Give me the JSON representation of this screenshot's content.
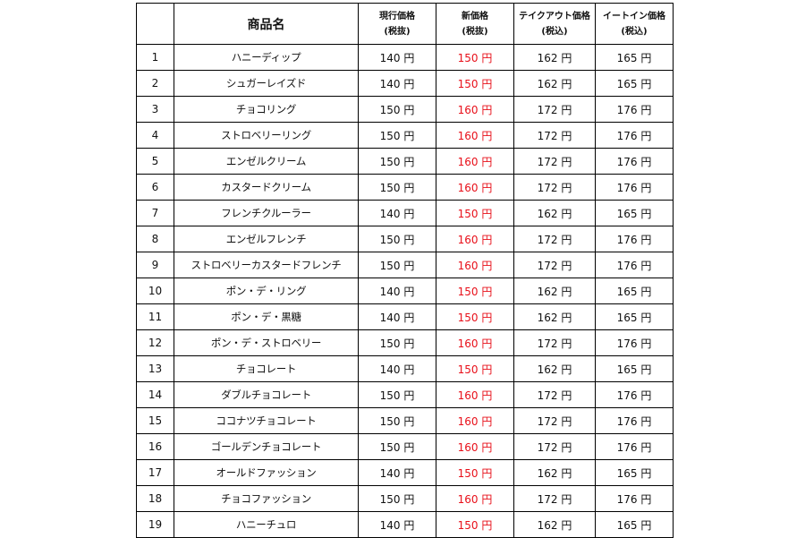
{
  "table": {
    "headers": {
      "no": "",
      "name": "商品名",
      "current": [
        "現行価格",
        "(税抜)"
      ],
      "new": [
        "新価格",
        "(税抜)"
      ],
      "takeout": [
        "テイクアウト価格",
        "(税込)"
      ],
      "eatin": [
        "イートイン価格",
        "(税込)"
      ]
    },
    "rows": [
      {
        "no": "1",
        "name": "ハニーディップ",
        "current": "140 円",
        "new": "150 円",
        "takeout": "162 円",
        "eatin": "165 円"
      },
      {
        "no": "2",
        "name": "シュガーレイズド",
        "current": "140 円",
        "new": "150 円",
        "takeout": "162 円",
        "eatin": "165 円"
      },
      {
        "no": "3",
        "name": "チョコリング",
        "current": "150 円",
        "new": "160 円",
        "takeout": "172 円",
        "eatin": "176 円"
      },
      {
        "no": "4",
        "name": "ストロベリーリング",
        "current": "150 円",
        "new": "160 円",
        "takeout": "172 円",
        "eatin": "176 円"
      },
      {
        "no": "5",
        "name": "エンゼルクリーム",
        "current": "150 円",
        "new": "160 円",
        "takeout": "172 円",
        "eatin": "176 円"
      },
      {
        "no": "6",
        "name": "カスタードクリーム",
        "current": "150 円",
        "new": "160 円",
        "takeout": "172 円",
        "eatin": "176 円"
      },
      {
        "no": "7",
        "name": "フレンチクルーラー",
        "current": "140 円",
        "new": "150 円",
        "takeout": "162 円",
        "eatin": "165 円"
      },
      {
        "no": "8",
        "name": "エンゼルフレンチ",
        "current": "150 円",
        "new": "160 円",
        "takeout": "172 円",
        "eatin": "176 円"
      },
      {
        "no": "9",
        "name": "ストロベリーカスタードフレンチ",
        "current": "150 円",
        "new": "160 円",
        "takeout": "172 円",
        "eatin": "176 円"
      },
      {
        "no": "10",
        "name": "ポン・デ・リング",
        "current": "140 円",
        "new": "150 円",
        "takeout": "162 円",
        "eatin": "165 円"
      },
      {
        "no": "11",
        "name": "ポン・デ・黒糖",
        "current": "140 円",
        "new": "150 円",
        "takeout": "162 円",
        "eatin": "165 円"
      },
      {
        "no": "12",
        "name": "ポン・デ・ストロベリー",
        "current": "150 円",
        "new": "160 円",
        "takeout": "172 円",
        "eatin": "176 円"
      },
      {
        "no": "13",
        "name": "チョコレート",
        "current": "140 円",
        "new": "150 円",
        "takeout": "162 円",
        "eatin": "165 円"
      },
      {
        "no": "14",
        "name": "ダブルチョコレート",
        "current": "150 円",
        "new": "160 円",
        "takeout": "172 円",
        "eatin": "176 円"
      },
      {
        "no": "15",
        "name": "ココナツチョコレート",
        "current": "150 円",
        "new": "160 円",
        "takeout": "172 円",
        "eatin": "176 円"
      },
      {
        "no": "16",
        "name": "ゴールデンチョコレート",
        "current": "150 円",
        "new": "160 円",
        "takeout": "172 円",
        "eatin": "176 円"
      },
      {
        "no": "17",
        "name": "オールドファッション",
        "current": "140 円",
        "new": "150 円",
        "takeout": "162 円",
        "eatin": "165 円"
      },
      {
        "no": "18",
        "name": "チョコファッション",
        "current": "150 円",
        "new": "160 円",
        "takeout": "172 円",
        "eatin": "176 円"
      },
      {
        "no": "19",
        "name": "ハニーチュロ",
        "current": "140 円",
        "new": "150 円",
        "takeout": "162 円",
        "eatin": "165 円"
      }
    ]
  },
  "colors": {
    "new_price_text": "#e8101a",
    "grid_line": "#000000",
    "text": "#111111"
  }
}
